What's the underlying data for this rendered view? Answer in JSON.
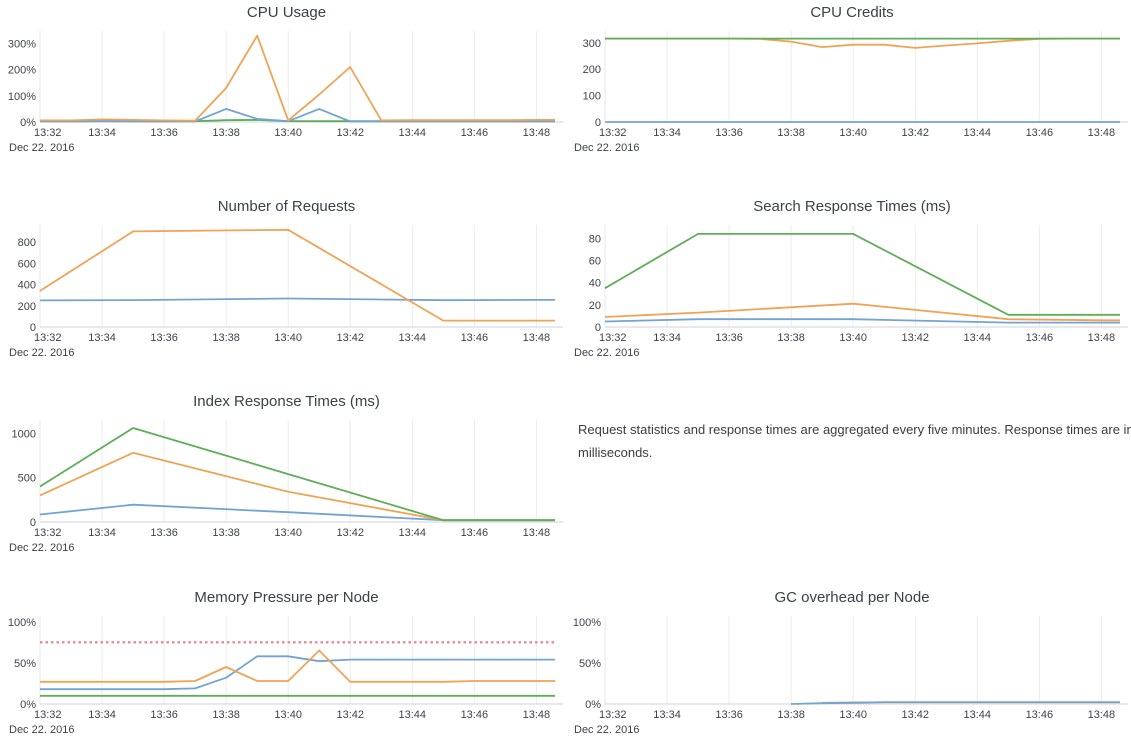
{
  "note": {
    "text": "Request statistics and response times are aggregated every five minutes. Response times are in milliseconds."
  },
  "colors": {
    "blue": "#73a3d3",
    "orange": "#f0a355",
    "green": "#5fae57",
    "red": "#ed7d7f",
    "grid": "#ebebeb",
    "grid_first": "#e3e7ea",
    "axis_line": "#ccd6e0",
    "tick_text": "#3f4246",
    "title_text": "#3b4148"
  },
  "chart_data": [
    {
      "id": "cpu-usage",
      "type": "line",
      "title": "CPU Usage",
      "date_label": "Dec 22. 2016",
      "x_tick_values": [
        0,
        2,
        4,
        6,
        8,
        10,
        12,
        14,
        16
      ],
      "x_tick_labels": [
        "13:32",
        "13:34",
        "13:36",
        "13:38",
        "13:40",
        "13:42",
        "13:44",
        "13:46",
        "13:48"
      ],
      "x_domain_max": 16.6,
      "y_max": 348,
      "y_ticks": [
        {
          "value": 0,
          "label": "0%"
        },
        {
          "value": 100,
          "label": "100%"
        },
        {
          "value": 200,
          "label": "200%"
        },
        {
          "value": 300,
          "label": "300%"
        }
      ],
      "series": [
        {
          "color_key": "green",
          "x": [
            0,
            1,
            2,
            3,
            4,
            5,
            6,
            7,
            8,
            9,
            10,
            11,
            12,
            13,
            14,
            15,
            16
          ],
          "y": [
            3,
            3,
            3,
            3,
            3,
            3,
            7,
            8,
            3,
            3,
            3,
            3,
            3,
            3,
            3,
            3,
            3
          ]
        },
        {
          "color_key": "blue",
          "x": [
            0,
            1,
            2,
            3,
            4,
            5,
            6,
            7,
            8,
            9,
            10,
            11,
            12,
            13,
            14,
            15,
            16
          ],
          "y": [
            2,
            2,
            3,
            2,
            2,
            2,
            50,
            12,
            3,
            50,
            2,
            2,
            2,
            2,
            2,
            2,
            2
          ]
        },
        {
          "color_key": "orange",
          "x": [
            0,
            1,
            2,
            3,
            4,
            5,
            6,
            7,
            8,
            9,
            10,
            11,
            12,
            13,
            14,
            15,
            16
          ],
          "y": [
            6,
            6,
            10,
            8,
            6,
            5,
            130,
            330,
            6,
            105,
            210,
            6,
            7,
            7,
            7,
            7,
            8
          ]
        }
      ]
    },
    {
      "id": "cpu-credits",
      "type": "line",
      "title": "CPU Credits",
      "date_label": "Dec 22. 2016",
      "x_tick_values": [
        0,
        2,
        4,
        6,
        8,
        10,
        12,
        14,
        16
      ],
      "x_tick_labels": [
        "13:32",
        "13:34",
        "13:36",
        "13:38",
        "13:40",
        "13:42",
        "13:44",
        "13:46",
        "13:48"
      ],
      "x_domain_max": 16.6,
      "y_max": 345,
      "y_ticks": [
        {
          "value": 0,
          "label": "0"
        },
        {
          "value": 100,
          "label": "100"
        },
        {
          "value": 200,
          "label": "200"
        },
        {
          "value": 300,
          "label": "300"
        }
      ],
      "series": [
        {
          "color_key": "blue",
          "x": [
            0,
            16
          ],
          "y": [
            0,
            0
          ]
        },
        {
          "color_key": "orange",
          "x": [
            0,
            1,
            2,
            3,
            4,
            5,
            6,
            7,
            8,
            9,
            10,
            11,
            12,
            13,
            14,
            15,
            16
          ],
          "y": [
            316,
            316,
            316,
            316,
            316,
            315,
            305,
            284,
            293,
            293,
            281,
            290,
            298,
            308,
            315,
            316,
            316
          ]
        },
        {
          "color_key": "green",
          "x": [
            0,
            16
          ],
          "y": [
            316,
            316
          ]
        }
      ]
    },
    {
      "id": "number-of-requests",
      "type": "line",
      "title": "Number of Requests",
      "date_label": "Dec 22. 2016",
      "x_tick_values": [
        0,
        2,
        4,
        6,
        8,
        10,
        12,
        14,
        16
      ],
      "x_tick_labels": [
        "13:32",
        "13:34",
        "13:36",
        "13:38",
        "13:40",
        "13:42",
        "13:44",
        "13:46",
        "13:48"
      ],
      "x_domain_max": 16.6,
      "y_max": 960,
      "y_ticks": [
        {
          "value": 0,
          "label": "0"
        },
        {
          "value": 200,
          "label": "200"
        },
        {
          "value": 400,
          "label": "400"
        },
        {
          "value": 600,
          "label": "600"
        },
        {
          "value": 800,
          "label": "800"
        }
      ],
      "series": [
        {
          "color_key": "blue",
          "x": [
            0,
            3,
            8,
            13,
            16
          ],
          "y": [
            250,
            253,
            268,
            252,
            255
          ]
        },
        {
          "color_key": "orange",
          "x": [
            0,
            3,
            8,
            13,
            16
          ],
          "y": [
            340,
            900,
            915,
            60,
            60
          ]
        }
      ]
    },
    {
      "id": "search-response-times",
      "type": "line",
      "title": "Search Response Times (ms)",
      "date_label": "Dec 22. 2016",
      "x_tick_values": [
        0,
        2,
        4,
        6,
        8,
        10,
        12,
        14,
        16
      ],
      "x_tick_labels": [
        "13:32",
        "13:34",
        "13:36",
        "13:38",
        "13:40",
        "13:42",
        "13:44",
        "13:46",
        "13:48"
      ],
      "x_domain_max": 16.6,
      "y_max": 92,
      "y_ticks": [
        {
          "value": 0,
          "label": "0"
        },
        {
          "value": 20,
          "label": "20"
        },
        {
          "value": 40,
          "label": "40"
        },
        {
          "value": 60,
          "label": "60"
        },
        {
          "value": 80,
          "label": "80"
        }
      ],
      "series": [
        {
          "color_key": "blue",
          "x": [
            0,
            3,
            8,
            13,
            16
          ],
          "y": [
            5,
            7,
            7,
            4,
            4
          ]
        },
        {
          "color_key": "orange",
          "x": [
            0,
            3,
            8,
            13,
            16
          ],
          "y": [
            9,
            13,
            21,
            7,
            6
          ]
        },
        {
          "color_key": "green",
          "x": [
            0,
            3,
            8,
            13,
            16
          ],
          "y": [
            35,
            84,
            84,
            11,
            11
          ]
        }
      ]
    },
    {
      "id": "index-response-times",
      "type": "line",
      "title": "Index Response Times (ms)",
      "date_label": "Dec 22. 2016",
      "x_tick_values": [
        0,
        2,
        4,
        6,
        8,
        10,
        12,
        14,
        16
      ],
      "x_tick_labels": [
        "13:32",
        "13:34",
        "13:36",
        "13:38",
        "13:40",
        "13:42",
        "13:44",
        "13:46",
        "13:48"
      ],
      "x_domain_max": 16.6,
      "y_max": 1150,
      "y_ticks": [
        {
          "value": 0,
          "label": "0"
        },
        {
          "value": 500,
          "label": "500"
        },
        {
          "value": 1000,
          "label": "1000"
        }
      ],
      "series": [
        {
          "color_key": "blue",
          "x": [
            0,
            3,
            8,
            13,
            16
          ],
          "y": [
            85,
            195,
            110,
            20,
            20
          ]
        },
        {
          "color_key": "orange",
          "x": [
            0,
            3,
            8,
            13,
            16
          ],
          "y": [
            300,
            780,
            340,
            20,
            20
          ]
        },
        {
          "color_key": "green",
          "x": [
            0,
            3,
            8,
            13,
            16
          ],
          "y": [
            400,
            1060,
            540,
            20,
            20
          ]
        }
      ]
    },
    {
      "id": "memory-pressure-per-node",
      "type": "line",
      "title": "Memory Pressure per Node",
      "date_label": "Dec 22. 2016",
      "x_tick_values": [
        0,
        2,
        4,
        6,
        8,
        10,
        12,
        14,
        16
      ],
      "x_tick_labels": [
        "13:32",
        "13:34",
        "13:36",
        "13:38",
        "13:40",
        "13:42",
        "13:44",
        "13:46",
        "13:48"
      ],
      "x_domain_max": 16.6,
      "y_max": 107,
      "y_ticks": [
        {
          "value": 0,
          "label": "0%"
        },
        {
          "value": 50,
          "label": "50%"
        },
        {
          "value": 100,
          "label": "100%"
        }
      ],
      "series": [
        {
          "color_key": "green",
          "x": [
            0,
            16
          ],
          "y": [
            10,
            10
          ]
        },
        {
          "color_key": "blue",
          "x": [
            0,
            1,
            2,
            3,
            4,
            5,
            6,
            7,
            8,
            9,
            10,
            11,
            12,
            13,
            14,
            15,
            16
          ],
          "y": [
            18,
            18,
            18,
            18,
            18,
            19,
            32,
            58,
            58,
            52,
            54,
            54,
            54,
            54,
            54,
            54,
            54
          ]
        },
        {
          "color_key": "orange",
          "x": [
            0,
            1,
            2,
            3,
            4,
            5,
            6,
            7,
            8,
            9,
            10,
            11,
            12,
            13,
            14,
            15,
            16
          ],
          "y": [
            27,
            27,
            27,
            27,
            27,
            28,
            45,
            28,
            28,
            65,
            27,
            27,
            27,
            27,
            28,
            28,
            28
          ]
        },
        {
          "color_key": "red",
          "dash": true,
          "x": [
            0,
            16
          ],
          "y": [
            75,
            75
          ]
        }
      ]
    },
    {
      "id": "gc-overhead-per-node",
      "type": "line",
      "title": "GC overhead per Node",
      "date_label": "Dec 22. 2016",
      "x_tick_values": [
        0,
        2,
        4,
        6,
        8,
        10,
        12,
        14,
        16
      ],
      "x_tick_labels": [
        "13:32",
        "13:34",
        "13:36",
        "13:38",
        "13:40",
        "13:42",
        "13:44",
        "13:46",
        "13:48"
      ],
      "x_domain_max": 16.6,
      "y_max": 107,
      "y_ticks": [
        {
          "value": 0,
          "label": "0%"
        },
        {
          "value": 50,
          "label": "50%"
        },
        {
          "value": 100,
          "label": "100%"
        }
      ],
      "series": [
        {
          "color_key": "orange",
          "x": [
            7,
            8,
            9,
            10,
            11,
            12,
            13,
            14,
            15,
            16
          ],
          "y": [
            1.5,
            2,
            2,
            2,
            2,
            2,
            2,
            2,
            2,
            2
          ]
        },
        {
          "color_key": "blue",
          "x": [
            6,
            7,
            8,
            9,
            10,
            11,
            12,
            13,
            14,
            15,
            16
          ],
          "y": [
            0,
            1,
            1.5,
            2.3,
            2.3,
            2.3,
            2.3,
            2.3,
            2.3,
            2.3,
            2.3
          ]
        }
      ]
    }
  ]
}
